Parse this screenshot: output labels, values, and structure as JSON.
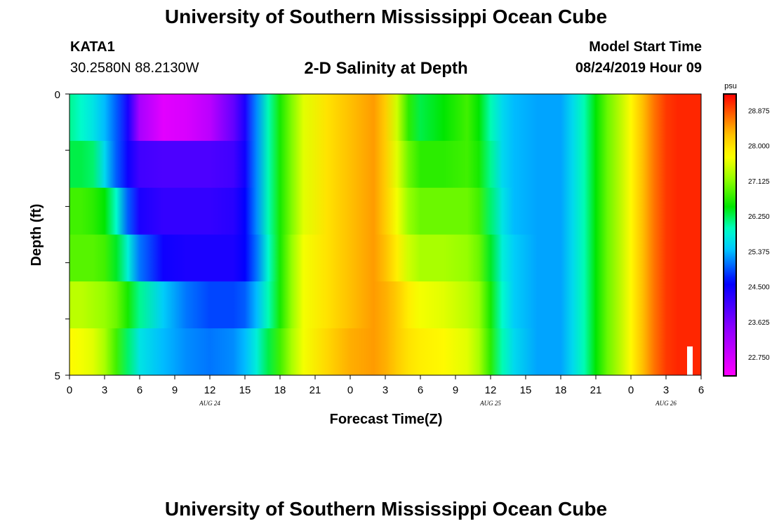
{
  "header": {
    "title": "University of Southern Mississippi Ocean Cube",
    "station": "KATA1",
    "coords": "30.2580N 88.2130W",
    "subtitle": "2-D Salinity at Depth",
    "model_start_label": "Model Start Time",
    "model_start_value": "08/24/2019 Hour 09"
  },
  "footer": {
    "title": "University of Southern Mississippi Ocean Cube"
  },
  "chart_data": {
    "type": "heatmap",
    "title": "2-D Salinity at Depth",
    "xlabel": "Forecast Time(Z)",
    "ylabel": "Depth (ft)",
    "x_tick_labels": [
      "0",
      "3",
      "6",
      "9",
      "12",
      "15",
      "18",
      "21",
      "0",
      "3",
      "6",
      "9",
      "12",
      "15",
      "18",
      "21",
      "0",
      "3",
      "6"
    ],
    "date_labels": [
      {
        "label": "AUG 24",
        "hours_from_start": 12
      },
      {
        "label": "AUG 25",
        "hours_from_start": 36
      },
      {
        "label": "AUG 26",
        "hours_from_start": 51
      }
    ],
    "y_tick_labels": [
      "0",
      "5"
    ],
    "ylim": [
      0,
      5
    ],
    "x_range_hours": [
      0,
      54
    ],
    "depth_levels": 5,
    "colorbar": {
      "unit": "psu",
      "min": 22.3,
      "max": 29.3,
      "tick_labels": [
        "28.875",
        "28.000",
        "27.125",
        "26.250",
        "25.375",
        "24.500",
        "23.625",
        "22.750"
      ],
      "tick_values": [
        28.875,
        28.0,
        27.125,
        26.25,
        25.375,
        24.5,
        23.625,
        22.75
      ]
    },
    "series": [
      {
        "depth_row": 1,
        "hours": [
          0,
          1,
          2,
          3,
          4,
          5,
          6,
          8,
          10,
          12,
          14,
          15,
          16,
          17,
          18,
          19,
          20,
          22,
          24,
          26,
          27,
          28,
          29,
          30,
          32,
          34,
          35,
          36,
          37,
          38,
          40,
          42,
          43,
          44,
          45,
          46,
          48,
          49,
          50,
          51,
          52,
          54
        ],
        "values": [
          26.1,
          25.9,
          25.7,
          25.4,
          25.0,
          24.4,
          23.2,
          22.6,
          22.7,
          23.0,
          23.8,
          24.4,
          25.2,
          26.0,
          26.6,
          27.1,
          27.6,
          28.0,
          28.3,
          28.5,
          28.2,
          27.5,
          26.7,
          26.3,
          26.5,
          26.8,
          26.5,
          26.0,
          25.6,
          25.4,
          25.3,
          25.3,
          25.6,
          26.0,
          26.5,
          27.0,
          27.8,
          28.3,
          28.7,
          29.0,
          29.1,
          29.1
        ]
      },
      {
        "depth_row": 2,
        "hours": [
          0,
          1,
          2,
          3,
          4,
          5,
          6,
          8,
          10,
          12,
          14,
          15,
          16,
          17,
          18,
          19,
          20,
          22,
          24,
          26,
          27,
          28,
          29,
          30,
          32,
          34,
          35,
          36,
          37,
          38,
          40,
          42,
          43,
          44,
          45,
          46,
          48,
          49,
          50,
          51,
          52,
          54
        ],
        "values": [
          26.3,
          26.3,
          26.2,
          25.6,
          25.0,
          24.5,
          24.1,
          24.0,
          24.0,
          24.0,
          24.1,
          24.5,
          25.2,
          26.0,
          26.6,
          27.1,
          27.6,
          28.0,
          28.3,
          28.5,
          28.2,
          27.6,
          27.0,
          26.7,
          26.7,
          26.8,
          26.6,
          26.1,
          25.6,
          25.4,
          25.3,
          25.3,
          25.6,
          26.0,
          26.5,
          27.0,
          27.8,
          28.3,
          28.7,
          29.0,
          29.1,
          29.1
        ]
      },
      {
        "depth_row": 3,
        "hours": [
          0,
          1,
          2,
          3,
          4,
          5,
          6,
          8,
          10,
          12,
          14,
          15,
          16,
          17,
          18,
          19,
          20,
          22,
          24,
          26,
          27,
          28,
          29,
          30,
          32,
          34,
          35,
          36,
          37,
          38,
          40,
          42,
          43,
          44,
          45,
          46,
          48,
          49,
          50,
          51,
          52,
          54
        ],
        "values": [
          26.8,
          26.8,
          26.7,
          26.5,
          25.9,
          25.0,
          24.4,
          24.2,
          24.2,
          24.2,
          24.3,
          24.6,
          25.2,
          26.0,
          26.6,
          27.1,
          27.6,
          28.0,
          28.3,
          28.5,
          28.2,
          27.7,
          27.2,
          27.0,
          27.0,
          27.0,
          26.8,
          26.2,
          25.7,
          25.4,
          25.3,
          25.3,
          25.6,
          26.0,
          26.5,
          27.0,
          27.8,
          28.3,
          28.7,
          29.0,
          29.1,
          29.1
        ]
      },
      {
        "depth_row": 4,
        "hours": [
          0,
          1,
          2,
          3,
          4,
          5,
          6,
          8,
          10,
          12,
          14,
          15,
          16,
          17,
          18,
          19,
          20,
          22,
          24,
          26,
          27,
          28,
          29,
          30,
          32,
          34,
          35,
          36,
          37,
          38,
          40,
          42,
          43,
          44,
          45,
          46,
          48,
          49,
          50,
          51,
          52,
          54
        ],
        "values": [
          26.9,
          26.9,
          26.9,
          26.8,
          26.4,
          25.8,
          25.1,
          24.5,
          24.4,
          24.4,
          24.4,
          24.6,
          25.1,
          25.9,
          26.6,
          27.2,
          27.7,
          28.0,
          28.3,
          28.5,
          28.3,
          27.9,
          27.5,
          27.3,
          27.3,
          27.2,
          27.0,
          26.4,
          25.8,
          25.5,
          25.3,
          25.3,
          25.6,
          26.0,
          26.5,
          27.0,
          27.8,
          28.3,
          28.7,
          29.0,
          29.1,
          29.1
        ]
      },
      {
        "depth_row": 5,
        "hours": [
          0,
          1,
          2,
          3,
          4,
          5,
          6,
          8,
          10,
          12,
          14,
          15,
          16,
          17,
          18,
          19,
          20,
          22,
          24,
          26,
          27,
          28,
          29,
          30,
          32,
          34,
          35,
          36,
          37,
          38,
          40,
          42,
          43,
          44,
          45,
          46,
          48,
          49,
          50,
          51,
          52,
          54
        ],
        "values": [
          27.4,
          27.4,
          27.3,
          27.2,
          27.0,
          26.6,
          26.1,
          25.5,
          25.1,
          24.9,
          24.9,
          25.0,
          25.4,
          26.0,
          26.6,
          27.2,
          27.7,
          28.0,
          28.3,
          28.5,
          28.4,
          28.2,
          27.9,
          27.7,
          27.6,
          27.4,
          27.2,
          26.6,
          25.9,
          25.5,
          25.3,
          25.3,
          25.6,
          26.0,
          26.5,
          27.0,
          27.8,
          28.3,
          28.7,
          29.0,
          29.1,
          29.1
        ]
      },
      {
        "depth_row": 6,
        "hours": [
          0,
          1,
          2,
          3,
          4,
          5,
          6,
          8,
          10,
          12,
          14,
          15,
          16,
          17,
          18,
          19,
          20,
          22,
          24,
          26,
          27,
          28,
          29,
          30,
          32,
          34,
          35,
          36,
          37,
          38,
          40,
          42,
          43,
          44,
          45,
          46,
          48,
          49,
          50,
          51,
          52,
          54
        ],
        "values": [
          27.8,
          27.7,
          27.6,
          27.3,
          26.8,
          26.2,
          25.7,
          25.4,
          25.2,
          25.1,
          25.2,
          25.4,
          25.8,
          26.3,
          26.8,
          27.3,
          27.7,
          28.1,
          28.4,
          28.5,
          28.4,
          28.2,
          28.0,
          27.9,
          27.8,
          27.6,
          27.3,
          26.7,
          26.0,
          25.6,
          25.3,
          25.3,
          25.6,
          26.0,
          26.5,
          27.0,
          27.8,
          28.3,
          28.7,
          29.0,
          29.1,
          29.1
        ]
      }
    ]
  }
}
